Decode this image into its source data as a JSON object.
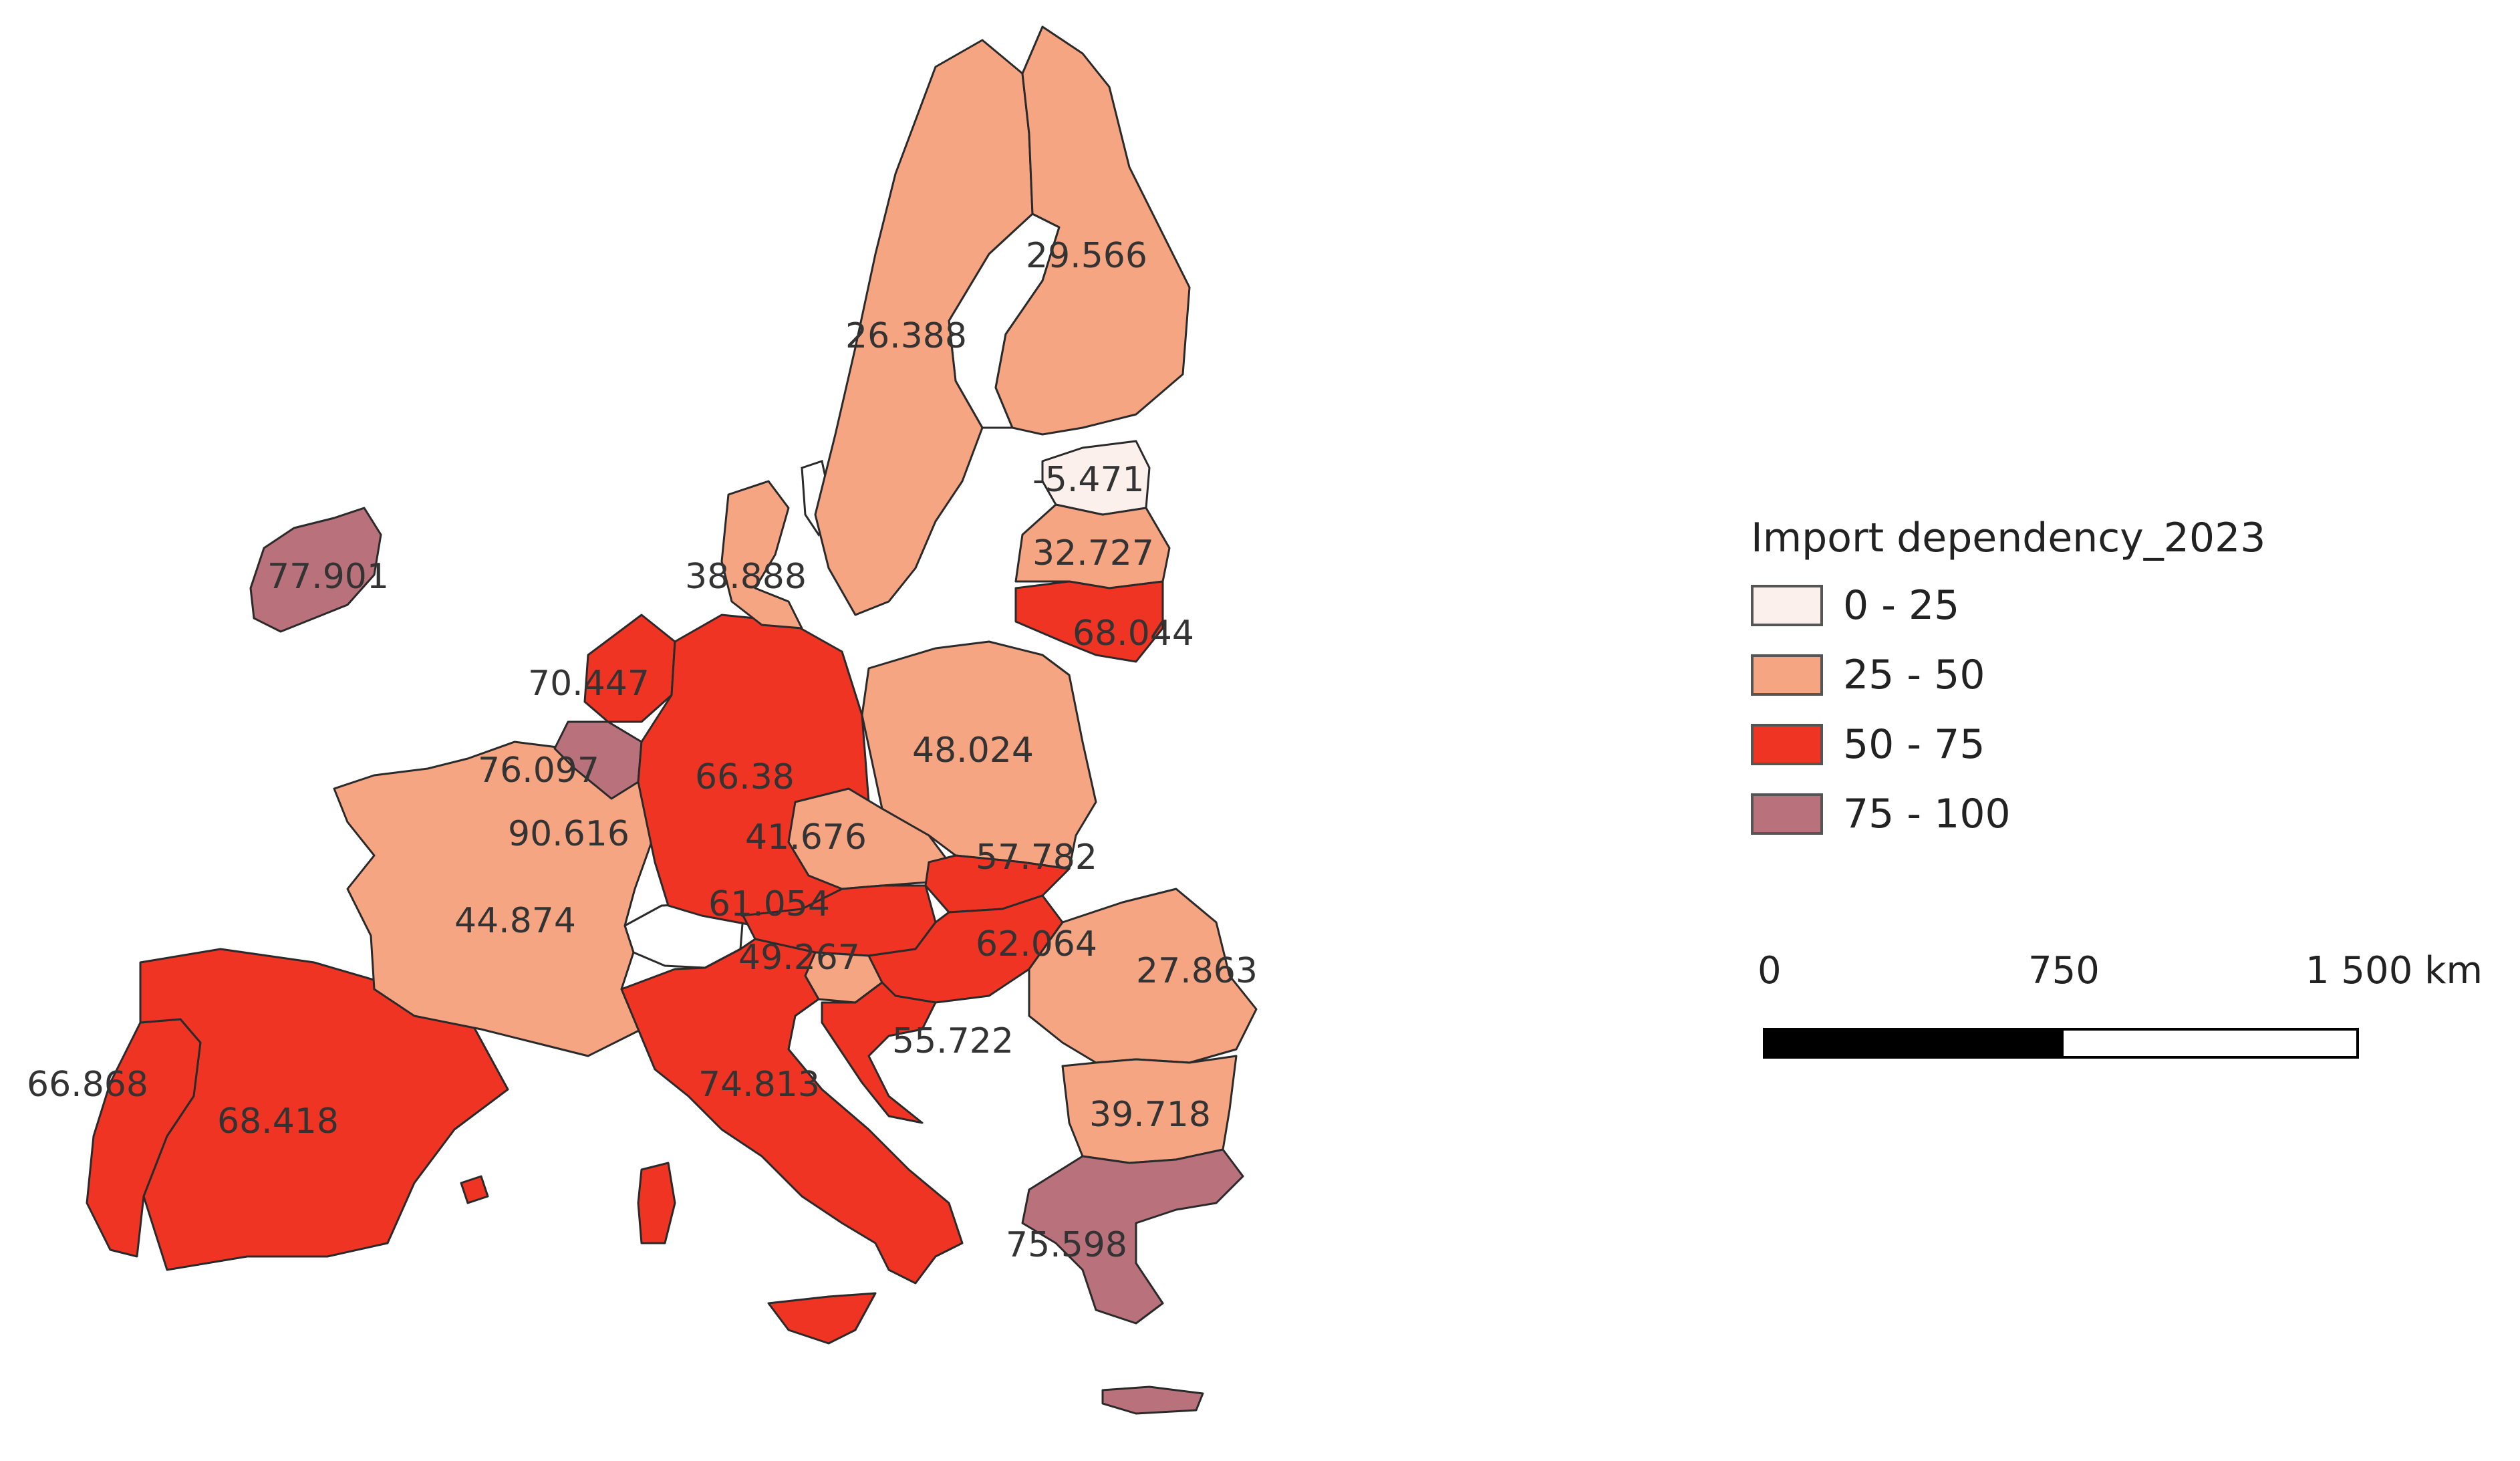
{
  "legend": {
    "title": "Import dependency_2023",
    "classes": [
      {
        "label": "0 - 25",
        "color": "#fcf0ec"
      },
      {
        "label": "25 - 50",
        "color": "#f6a583"
      },
      {
        "label": "50 - 75",
        "color": "#f03423"
      },
      {
        "label": "75 - 100",
        "color": "#b9727c"
      }
    ]
  },
  "scale": {
    "labels": [
      "0",
      "750",
      "1 500 km"
    ]
  },
  "countries": [
    {
      "id": "ireland",
      "value_label": "77.901",
      "value": 77.901,
      "class": 3
    },
    {
      "id": "portugal",
      "value_label": "66.868",
      "value": 66.868,
      "class": 2
    },
    {
      "id": "spain",
      "value_label": "68.418",
      "value": 68.418,
      "class": 2
    },
    {
      "id": "france",
      "value_label": "44.874",
      "value": 44.874,
      "class": 1
    },
    {
      "id": "luxembourg",
      "value_label": "90.616",
      "value": 90.616,
      "class": 3
    },
    {
      "id": "belgium",
      "value_label": "76.097",
      "value": 76.097,
      "class": 3
    },
    {
      "id": "netherlands",
      "value_label": "70.447",
      "value": 70.447,
      "class": 2
    },
    {
      "id": "germany",
      "value_label": "66.38",
      "value": 66.38,
      "class": 2
    },
    {
      "id": "denmark",
      "value_label": "38.888",
      "value": 38.888,
      "class": 1
    },
    {
      "id": "sweden",
      "value_label": "26.388",
      "value": 26.388,
      "class": 1
    },
    {
      "id": "finland",
      "value_label": "29.566",
      "value": 29.566,
      "class": 1
    },
    {
      "id": "estonia",
      "value_label": "-5.471",
      "value": -5.471,
      "class": 0
    },
    {
      "id": "latvia",
      "value_label": "32.727",
      "value": 32.727,
      "class": 1
    },
    {
      "id": "lithuania",
      "value_label": "68.044",
      "value": 68.044,
      "class": 2
    },
    {
      "id": "poland",
      "value_label": "48.024",
      "value": 48.024,
      "class": 1
    },
    {
      "id": "czechia",
      "value_label": "41.676",
      "value": 41.676,
      "class": 1
    },
    {
      "id": "slovakia",
      "value_label": "57.782",
      "value": 57.782,
      "class": 2
    },
    {
      "id": "austria",
      "value_label": "61.054",
      "value": 61.054,
      "class": 2
    },
    {
      "id": "slovenia",
      "value_label": "49.267",
      "value": 49.267,
      "class": 1
    },
    {
      "id": "hungary",
      "value_label": "62.064",
      "value": 62.064,
      "class": 2
    },
    {
      "id": "croatia",
      "value_label": "55.722",
      "value": 55.722,
      "class": 2
    },
    {
      "id": "romania",
      "value_label": "27.863",
      "value": 27.863,
      "class": 1
    },
    {
      "id": "bulgaria",
      "value_label": "39.718",
      "value": 39.718,
      "class": 1
    },
    {
      "id": "italy",
      "value_label": "74.813",
      "value": 74.813,
      "class": 2
    },
    {
      "id": "greece",
      "value_label": "75.598",
      "value": 75.598,
      "class": 3
    }
  ]
}
